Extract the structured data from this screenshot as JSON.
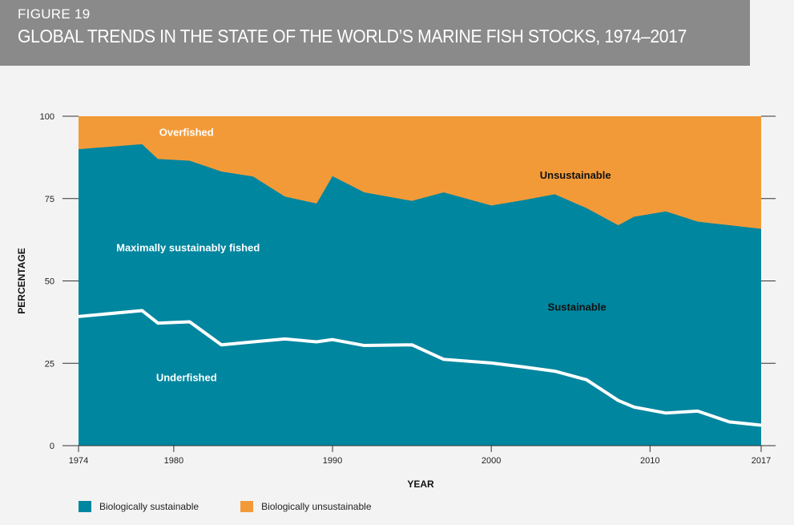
{
  "header": {
    "figure_number": "FIGURE 19",
    "title": "GLOBAL TRENDS IN THE STATE OF THE WORLD’S MARINE FISH STOCKS, 1974–2017"
  },
  "colors": {
    "sustainable": "#00869f",
    "unsustainable": "#f39a38",
    "divider_line": "#ffffff",
    "header_bg": "#8a8a8a"
  },
  "chart_data": {
    "type": "area",
    "xlabel": "YEAR",
    "ylabel": "PERCENTAGE",
    "xlim": [
      1974,
      2017
    ],
    "ylim": [
      0,
      100
    ],
    "x_ticks": [
      1974,
      1980,
      1990,
      2000,
      2010,
      2017
    ],
    "y_ticks": [
      0,
      25,
      50,
      75,
      100
    ],
    "grid": false,
    "legend_position": "bottom-left",
    "x": [
      1974,
      1978,
      1979,
      1981,
      1983,
      1985,
      1987,
      1989,
      1990,
      1992,
      1995,
      1997,
      2000,
      2002,
      2004,
      2006,
      2008,
      2009,
      2011,
      2013,
      2015,
      2017
    ],
    "series": [
      {
        "name": "Biologically sustainable",
        "values": [
          90,
          91.5,
          87,
          86.5,
          83.2,
          81.7,
          75.6,
          73.5,
          81.8,
          76.9,
          74.3,
          76.9,
          72.9,
          74.5,
          76.3,
          72.1,
          66.9,
          69.5,
          71.1,
          68.0,
          66.9,
          65.8
        ]
      },
      {
        "name": "Biologically unsustainable",
        "values": [
          10,
          8.5,
          13,
          13.5,
          16.8,
          18.3,
          24.4,
          26.5,
          18.2,
          23.1,
          25.7,
          23.1,
          27.1,
          25.5,
          23.7,
          27.9,
          33.1,
          30.5,
          28.9,
          32.0,
          33.1,
          34.2
        ]
      }
    ],
    "underfished_line": {
      "values": [
        39.2,
        41.0,
        37.2,
        37.6,
        30.6,
        31.5,
        32.4,
        31.5,
        32.2,
        30.4,
        30.6,
        26.2,
        25.1,
        23.9,
        22.6,
        20.0,
        13.7,
        11.7,
        9.9,
        10.5,
        7.2,
        6.2
      ]
    },
    "annotations": [
      {
        "text": "Overfished",
        "x": 1980.8,
        "y": 95,
        "color": "#ffffff"
      },
      {
        "text": "Unsustainable",
        "x": 2005.3,
        "y": 82,
        "color": "#111111"
      },
      {
        "text": "Maximally sustainably fished",
        "x": 1980.9,
        "y": 60,
        "color": "#ffffff"
      },
      {
        "text": "Sustainable",
        "x": 2005.4,
        "y": 42,
        "color": "#111111"
      },
      {
        "text": "Underfished",
        "x": 1980.8,
        "y": 20.5,
        "color": "#ffffff"
      }
    ]
  },
  "legend": {
    "items": [
      {
        "label": "Biologically sustainable"
      },
      {
        "label": "Biologically unsustainable"
      }
    ]
  }
}
